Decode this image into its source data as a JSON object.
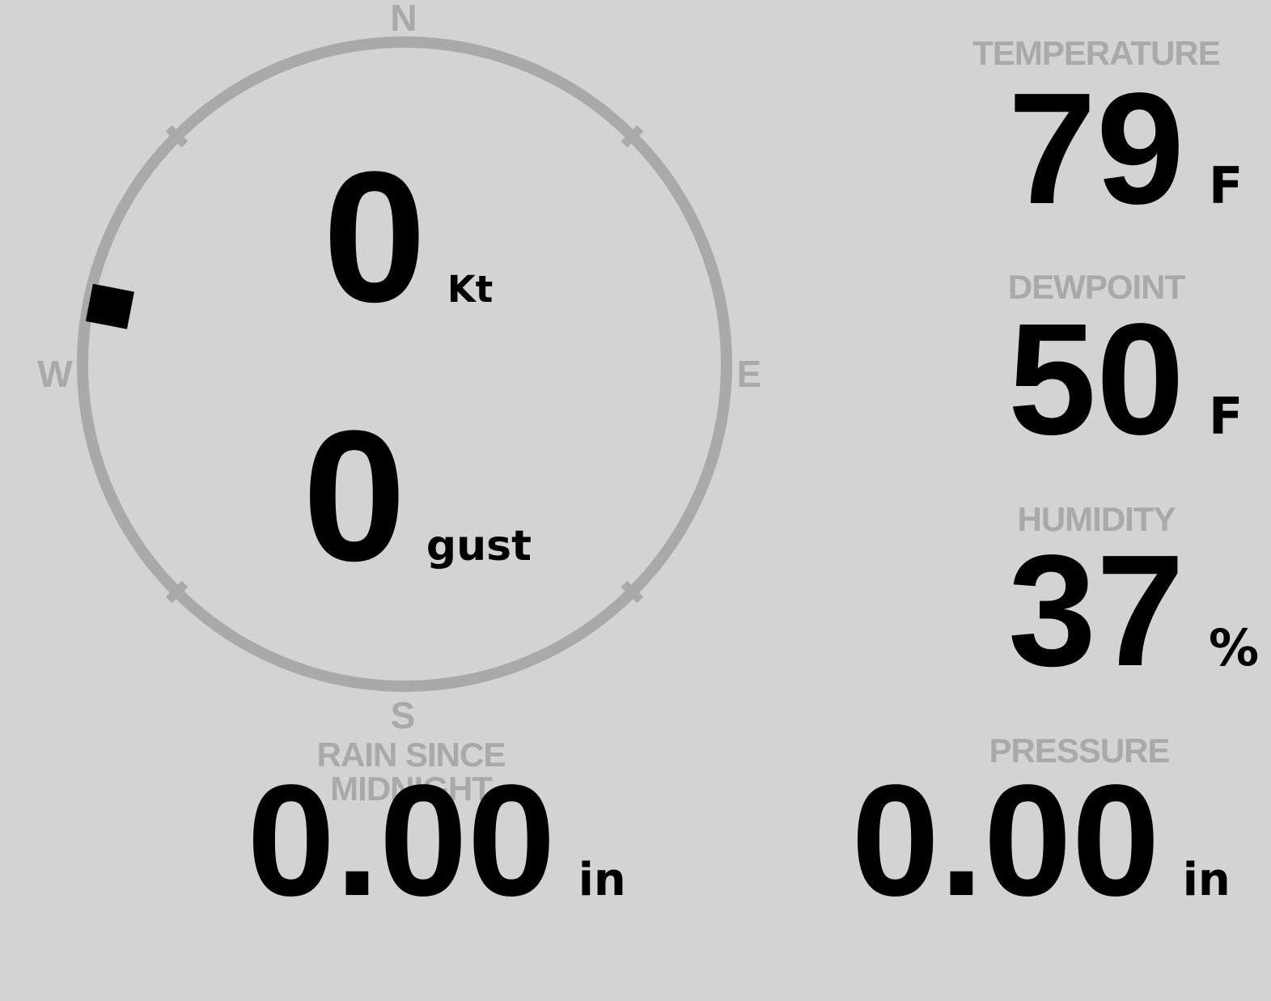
{
  "theme": {
    "background_color": "#d3d3d3",
    "muted_color": "#a9a9a9",
    "value_color": "#000000"
  },
  "wind": {
    "cardinals": {
      "north": "N",
      "east": "E",
      "south": "S",
      "west": "W"
    },
    "speed": {
      "value": "0",
      "unit": "Kt"
    },
    "gust": {
      "value": "0",
      "unit": "gust"
    },
    "direction_marker_bearing_deg": 281,
    "tick_bearings_deg": [
      45,
      135,
      225,
      315
    ]
  },
  "metrics": {
    "temperature": {
      "label": "TEMPERATURE",
      "value": "79",
      "unit": "F"
    },
    "dewpoint": {
      "label": "DEWPOINT",
      "value": "50",
      "unit": "F"
    },
    "humidity": {
      "label": "HUMIDITY",
      "value": "37",
      "unit": "%"
    },
    "rain_since_midnight": {
      "label": "RAIN SINCE MIDNIGHT",
      "value": "0.00",
      "unit": "in"
    },
    "pressure": {
      "label": "PRESSURE",
      "value": "0.00",
      "unit": "in"
    }
  }
}
